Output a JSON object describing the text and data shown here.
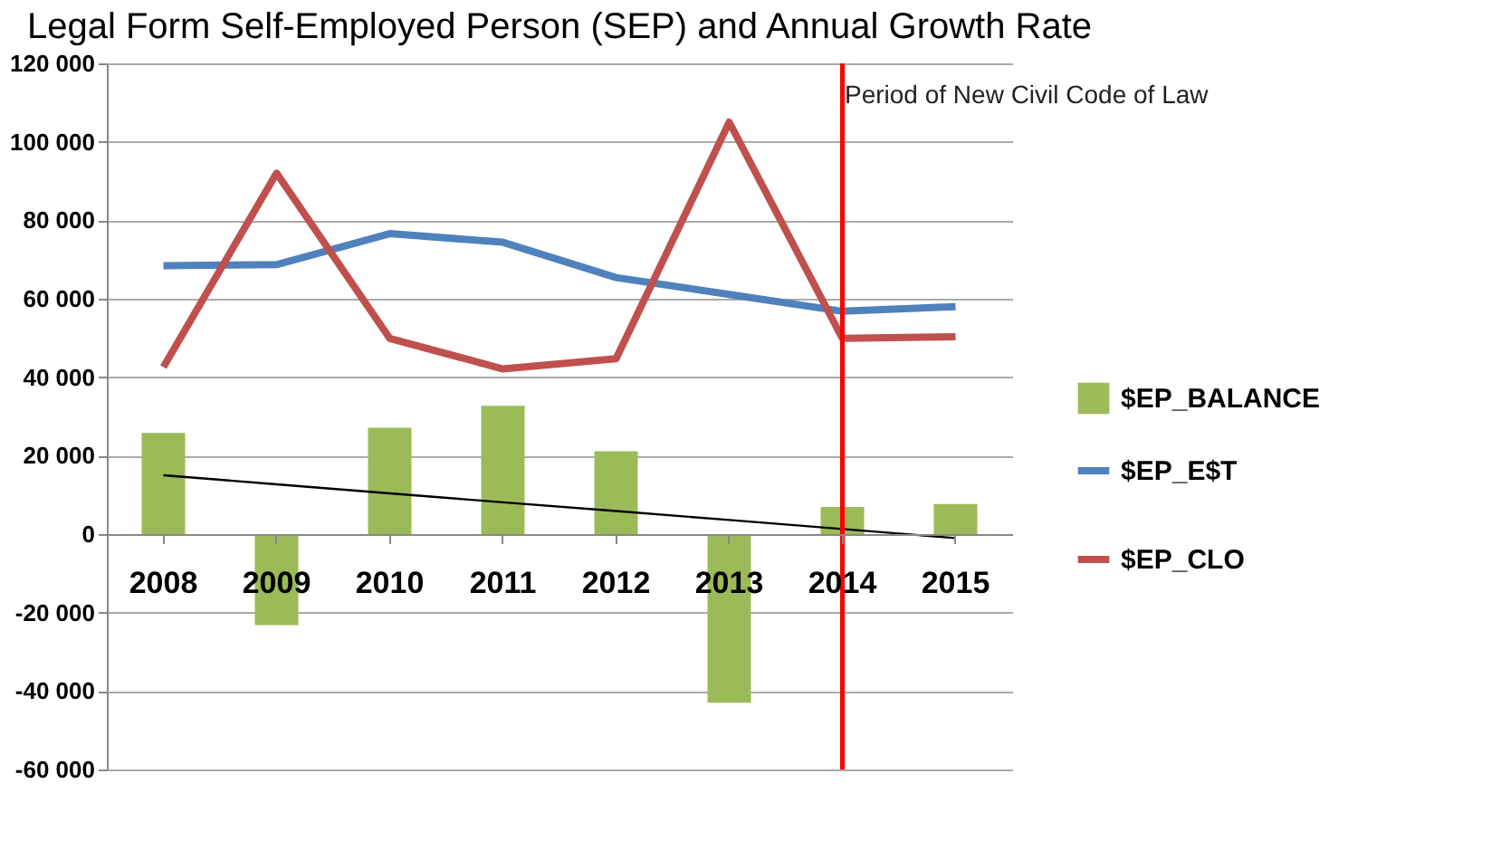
{
  "chart_data": {
    "type": "bar",
    "title": "Legal Form Self-Employed Person (SEP) and Annual Growth Rate",
    "categories": [
      "2008",
      "2009",
      "2010",
      "2011",
      "2012",
      "2013",
      "2014",
      "2015"
    ],
    "series": [
      {
        "name": "$EP_BALANCE",
        "color": "#9bbb59",
        "values": [
          25800,
          -23200,
          27100,
          32700,
          21100,
          -43000,
          6900,
          7700
        ]
      },
      {
        "name": "$EP_E$T",
        "type": "line",
        "color": "#4f81bd",
        "values": [
          68400,
          68700,
          76600,
          74400,
          65400,
          61100,
          56800,
          58000
        ]
      },
      {
        "name": "$EP_CLO",
        "type": "line",
        "color": "#c0504d",
        "values": [
          42600,
          92000,
          49900,
          42100,
          44700,
          105000,
          49900,
          50300
        ]
      },
      {
        "type": "line",
        "color": "#000000",
        "values": [
          15000,
          12700,
          10400,
          8100,
          5900,
          3600,
          1300,
          -1000
        ]
      }
    ],
    "ylim": [
      -60000,
      120000
    ],
    "yticks": [
      {
        "value": -60000,
        "label": "-60 000"
      },
      {
        "value": -40000,
        "label": "-40 000"
      },
      {
        "value": -20000,
        "label": "-20 000"
      },
      {
        "value": 0,
        "label": "0"
      },
      {
        "value": 20000,
        "label": "20 000"
      },
      {
        "value": 40000,
        "label": "40 000"
      },
      {
        "value": 60000,
        "label": "60 000"
      },
      {
        "value": 80000,
        "label": "80 000"
      },
      {
        "value": 100000,
        "label": "100 000"
      },
      {
        "value": 120000,
        "label": "120 000"
      }
    ],
    "ref_lines": [
      {
        "axis": "x",
        "value": "2014",
        "color": "#ff0000"
      }
    ],
    "annotations": [
      "Period of New Civil Code of Law"
    ],
    "grid": "y",
    "legend": "right"
  }
}
